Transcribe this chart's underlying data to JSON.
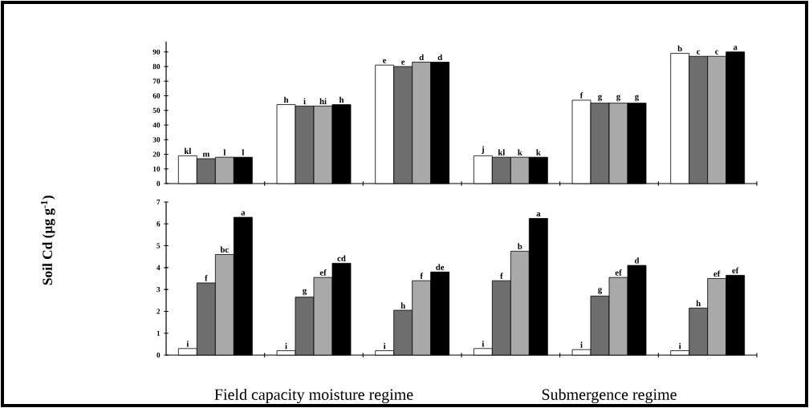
{
  "chart_data": [
    {
      "type": "bar",
      "categories": [
        null,
        null,
        null,
        null,
        null,
        null
      ],
      "ylim": [
        0,
        97
      ],
      "yticks": [
        0,
        10,
        20,
        30,
        40,
        50,
        60,
        70,
        80,
        90
      ],
      "series": [
        {
          "color": "#ffffff",
          "values": [
            19,
            54,
            81,
            19,
            57,
            89
          ],
          "value_labels": [
            "kl",
            "h",
            "e",
            "j",
            "f",
            "b"
          ]
        },
        {
          "color": "#6e6e6e",
          "values": [
            17,
            53,
            80,
            18,
            55,
            87
          ],
          "value_labels": [
            "m",
            "i",
            "e",
            "kl",
            "g",
            "c"
          ]
        },
        {
          "color": "#a9a9a9",
          "values": [
            18,
            53,
            83,
            18,
            55,
            87
          ],
          "value_labels": [
            "l",
            "hi",
            "d",
            "k",
            "g",
            "c"
          ]
        },
        {
          "color": "#000000",
          "values": [
            18,
            54,
            83,
            18,
            55,
            90
          ],
          "value_labels": [
            "l",
            "h",
            "d",
            "k",
            "g",
            "a"
          ]
        }
      ]
    },
    {
      "type": "bar",
      "categories": [
        null,
        null,
        null,
        null,
        null,
        null
      ],
      "ylim": [
        0,
        7
      ],
      "yticks": [
        0,
        1,
        2,
        3,
        4,
        5,
        6,
        7
      ],
      "ylabel": "Soil Cd (µg g$^{-1}$)",
      "annotations": [
        "Field capacity moisture regime",
        "Submergence regime"
      ],
      "series": [
        {
          "color": "#ffffff",
          "values": [
            0.3,
            0.2,
            0.2,
            0.3,
            0.25,
            0.2
          ],
          "value_labels": [
            "i",
            "i",
            "i",
            "i",
            "i",
            "i"
          ]
        },
        {
          "color": "#6e6e6e",
          "values": [
            3.3,
            2.65,
            2.05,
            3.4,
            2.7,
            2.15
          ],
          "value_labels": [
            "f",
            "g",
            "h",
            "f",
            "g",
            "h"
          ]
        },
        {
          "color": "#a9a9a9",
          "values": [
            4.6,
            3.55,
            3.4,
            4.75,
            3.55,
            3.5
          ],
          "value_labels": [
            "bc",
            "ef",
            "f",
            "b",
            "ef",
            "ef"
          ]
        },
        {
          "color": "#000000",
          "values": [
            6.3,
            4.2,
            3.8,
            6.25,
            4.1,
            3.65
          ],
          "value_labels": [
            "a",
            "cd",
            "de",
            "a",
            "d",
            "ef"
          ]
        }
      ]
    }
  ]
}
